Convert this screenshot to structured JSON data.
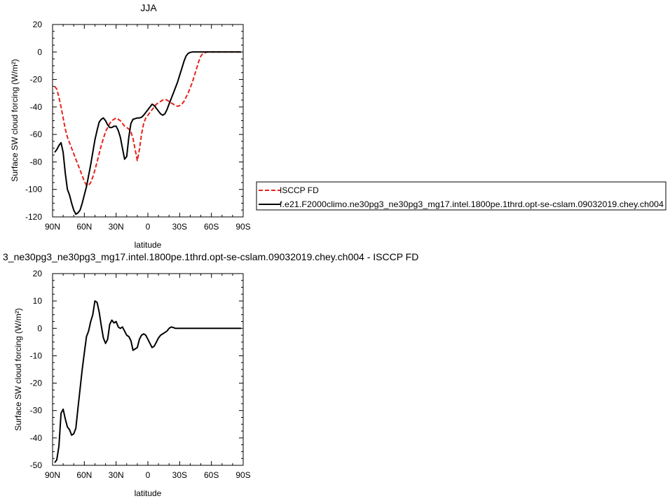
{
  "figure": {
    "top_title": "JJA",
    "bottom_title": "3_ne30pg3_ne30pg3_mg17.intel.1800pe.1thrd.opt-se-cslam.09032019.chey.ch004 - ISCCP FD"
  },
  "legend": {
    "entries": [
      {
        "label": "ISCCP FD",
        "color": "#e8221b",
        "dash": "dashed"
      },
      {
        "label": "f.e21.F2000climo.ne30pg3_ne30pg3_mg17.intel.1800pe.1thrd.opt-se-cslam.09032019.chey.ch004",
        "color": "#000000",
        "dash": "solid"
      }
    ]
  },
  "chart_data": [
    {
      "type": "line",
      "title": "JJA",
      "xlabel": "latitude",
      "ylabel": "Surface SW cloud forcing (W/m²)",
      "xlim": [
        -90,
        90
      ],
      "ylim": [
        -120,
        20
      ],
      "x_ticks": [
        -90,
        -60,
        -30,
        0,
        30,
        60,
        90
      ],
      "x_tick_labels": [
        "90N",
        "60N",
        "30N",
        "0",
        "30S",
        "60S",
        "90S"
      ],
      "y_ticks": [
        -120,
        -100,
        -80,
        -60,
        -40,
        -20,
        0,
        20
      ],
      "y_tick_labels": [
        "-120",
        "-100",
        "-80",
        "-60",
        "-40",
        "-20",
        "0",
        "20"
      ],
      "series": [
        {
          "name": "ISCCP FD",
          "color": "#e8221b",
          "style": "dashed",
          "x": [
            -88,
            -86,
            -84,
            -82,
            -80,
            -78,
            -76,
            -74,
            -72,
            -70,
            -68,
            -66,
            -64,
            -62,
            -60,
            -58,
            -56,
            -54,
            -52,
            -50,
            -48,
            -46,
            -44,
            -42,
            -40,
            -38,
            -36,
            -34,
            -32,
            -30,
            -28,
            -26,
            -24,
            -22,
            -20,
            -18,
            -16,
            -14,
            -12,
            -10,
            -8,
            -6,
            -4,
            -2,
            0,
            2,
            4,
            6,
            8,
            10,
            12,
            14,
            16,
            18,
            20,
            22,
            24,
            26,
            28,
            30,
            32,
            34,
            36,
            38,
            40,
            42,
            44,
            46,
            48,
            50,
            52,
            54,
            56,
            58,
            60,
            62,
            64,
            66,
            68,
            70,
            72,
            74,
            76,
            78,
            80,
            82,
            84,
            86,
            88
          ],
          "values": [
            -25,
            -27,
            -33,
            -40,
            -48,
            -56,
            -62,
            -66,
            -70,
            -74,
            -78,
            -82,
            -86,
            -90,
            -94,
            -97,
            -97,
            -95,
            -91,
            -86,
            -80,
            -74,
            -68,
            -63,
            -58,
            -55,
            -52,
            -50,
            -49,
            -48,
            -49,
            -50,
            -52,
            -54,
            -55,
            -56,
            -58,
            -63,
            -71,
            -79,
            -71,
            -60,
            -52,
            -48,
            -46,
            -44,
            -42,
            -40,
            -38,
            -37,
            -36,
            -35,
            -34.5,
            -35,
            -36,
            -37,
            -38,
            -39,
            -39.5,
            -39,
            -38,
            -36,
            -33,
            -30,
            -26,
            -22,
            -17,
            -12,
            -7,
            -3,
            -1,
            -0.5,
            0,
            0,
            0,
            0,
            0,
            0,
            0,
            0,
            0,
            0,
            0,
            0,
            0,
            0,
            0,
            0,
            0
          ]
        },
        {
          "name": "f.e21.F2000climo.ne30pg3_ne30pg3_mg17.intel.1800pe.1thrd.opt-se-cslam.09032019.chey.ch004",
          "color": "#000000",
          "style": "solid",
          "x": [
            -88,
            -86,
            -84,
            -82,
            -80,
            -78,
            -76,
            -74,
            -72,
            -70,
            -68,
            -66,
            -64,
            -62,
            -60,
            -58,
            -56,
            -54,
            -52,
            -50,
            -48,
            -46,
            -44,
            -42,
            -40,
            -38,
            -36,
            -34,
            -32,
            -30,
            -28,
            -26,
            -24,
            -22,
            -20,
            -18,
            -16,
            -14,
            -12,
            -10,
            -8,
            -6,
            -4,
            -2,
            0,
            2,
            4,
            6,
            8,
            10,
            12,
            14,
            16,
            18,
            20,
            22,
            24,
            26,
            28,
            30,
            32,
            34,
            36,
            38,
            40,
            42,
            44,
            46,
            48,
            50,
            52,
            54,
            56,
            58,
            60,
            62,
            64,
            66,
            68,
            70,
            72,
            74,
            76,
            78,
            80,
            82,
            84,
            86,
            88
          ],
          "values": [
            -73,
            -71,
            -68,
            -66,
            -73,
            -88,
            -100,
            -104,
            -110,
            -115,
            -118,
            -117,
            -115,
            -110,
            -104,
            -98,
            -90,
            -82,
            -73,
            -64,
            -57,
            -51,
            -49,
            -48,
            -50,
            -53,
            -55,
            -55,
            -54,
            -54,
            -57,
            -62,
            -70,
            -78,
            -76,
            -62,
            -52,
            -49,
            -48.5,
            -48,
            -48,
            -47.5,
            -46,
            -44,
            -42,
            -40,
            -38,
            -39,
            -41,
            -43,
            -45,
            -46,
            -45,
            -42,
            -38,
            -34,
            -30,
            -26,
            -22,
            -17,
            -12,
            -7,
            -3,
            -1,
            -0.3,
            0,
            0,
            0,
            0,
            0,
            0,
            0,
            0,
            0,
            0,
            0,
            0,
            0,
            0,
            0,
            0,
            0,
            0,
            0,
            0,
            0,
            0,
            0,
            0
          ]
        }
      ]
    },
    {
      "type": "line",
      "title": "3_ne30pg3_ne30pg3_mg17.intel.1800pe.1thrd.opt-se-cslam.09032019.chey.ch004 - ISCCP FD",
      "xlabel": "latitude",
      "ylabel": "Surface SW cloud forcing (W/m²)",
      "xlim": [
        -90,
        90
      ],
      "ylim": [
        -50,
        20
      ],
      "x_ticks": [
        -90,
        -60,
        -30,
        0,
        30,
        60,
        90
      ],
      "x_tick_labels": [
        "90N",
        "60N",
        "30N",
        "0",
        "30S",
        "60S",
        "90S"
      ],
      "y_ticks": [
        -50,
        -40,
        -30,
        -20,
        -10,
        0,
        10,
        20
      ],
      "y_tick_labels": [
        "-50",
        "-40",
        "-30",
        "-20",
        "-10",
        "0",
        "10",
        "20"
      ],
      "series": [
        {
          "name": "",
          "color": "#000000",
          "style": "solid",
          "x": [
            -88,
            -86,
            -84,
            -82,
            -80,
            -78,
            -76,
            -74,
            -72,
            -70,
            -68,
            -66,
            -64,
            -62,
            -60,
            -58,
            -56,
            -54,
            -52,
            -50,
            -48,
            -46,
            -44,
            -42,
            -40,
            -38,
            -36,
            -34,
            -32,
            -30,
            -28,
            -26,
            -24,
            -22,
            -20,
            -18,
            -16,
            -14,
            -12,
            -10,
            -8,
            -6,
            -4,
            -2,
            0,
            2,
            4,
            6,
            8,
            10,
            12,
            14,
            16,
            18,
            20,
            22,
            24,
            26,
            28,
            30,
            32,
            34,
            36,
            38,
            40,
            42,
            44,
            46,
            48,
            50,
            52,
            54,
            56,
            58,
            60,
            62,
            64,
            66,
            68,
            70,
            72,
            74,
            76,
            78,
            80,
            82,
            84,
            86,
            88
          ],
          "values": [
            -49,
            -48,
            -43,
            -31,
            -29.5,
            -33,
            -36,
            -37,
            -39,
            -38.5,
            -36.5,
            -29,
            -22,
            -15,
            -9,
            -3,
            -1,
            2.5,
            5,
            10,
            9.5,
            6,
            1,
            -3.5,
            -5.5,
            -4,
            1.5,
            3,
            2,
            2.5,
            0.5,
            0,
            0.5,
            -1,
            -2.5,
            -3,
            -4.5,
            -8,
            -7.5,
            -7,
            -4,
            -2.5,
            -2,
            -2.5,
            -4,
            -5.5,
            -7,
            -6.5,
            -5,
            -3.5,
            -2.5,
            -2,
            -1.5,
            -1,
            0,
            0.5,
            0.3,
            0,
            0,
            0,
            0,
            0,
            0,
            0,
            0,
            0,
            0,
            0,
            0,
            0,
            0,
            0,
            0,
            0,
            0,
            0,
            0,
            0,
            0,
            0,
            0,
            0,
            0,
            0,
            0,
            0,
            0,
            0,
            0
          ]
        }
      ]
    }
  ]
}
